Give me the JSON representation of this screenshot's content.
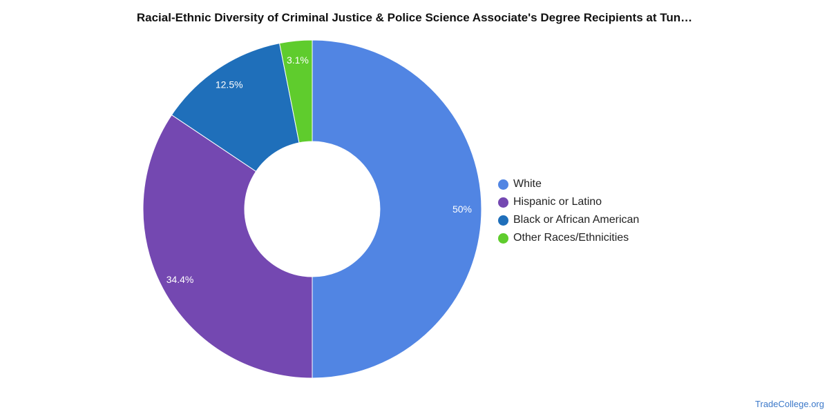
{
  "chart_data": {
    "type": "pie",
    "title": "Racial-Ethnic Diversity of Criminal Justice & Police Science Associate's Degree Recipients at Tun…",
    "categories": [
      "White",
      "Hispanic or Latino",
      "Black or African American",
      "Other Races/Ethnicities"
    ],
    "values": [
      50,
      34.4,
      12.5,
      3.1
    ],
    "labels": [
      "50%",
      "34.4%",
      "12.5%",
      "3.1%"
    ],
    "colors": [
      "#5185e3",
      "#7448b1",
      "#1f6fba",
      "#5fcc2d"
    ],
    "legend": "right"
  },
  "source": "TradeCollege.org"
}
